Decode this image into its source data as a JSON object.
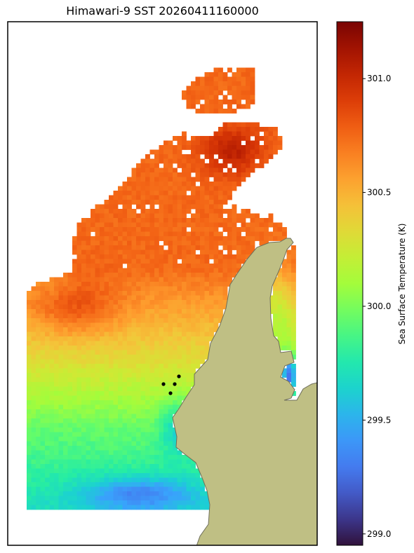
{
  "chart_data": {
    "type": "heatmap",
    "title": "Himawari-9 SST 20260411160000",
    "colorbar": {
      "label": "Sea Surface Temperature (K)",
      "range": [
        298.95,
        301.25
      ],
      "ticks": [
        "299.0",
        "299.5",
        "300.0",
        "300.5",
        "301.0"
      ],
      "tick_values": [
        299.0,
        299.5,
        300.0,
        300.5,
        301.0
      ],
      "colormap": "turbo"
    },
    "grid": false,
    "land_color": "#bfbf84",
    "point_count": 4
  }
}
